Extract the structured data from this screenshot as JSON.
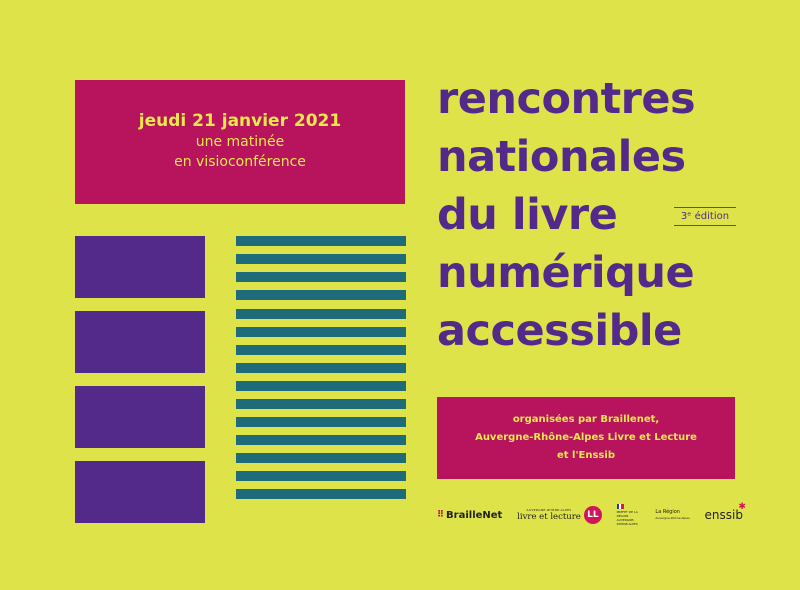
{
  "date_box": {
    "date": "jeudi 21 janvier 2021",
    "line1": "une matinée",
    "line2": "en visioconférence"
  },
  "title": {
    "line1": "rencontres",
    "line2": "nationales",
    "line3": "du livre",
    "line4": "numérique",
    "line5": "accessible"
  },
  "edition": "3ᵉ édition",
  "organizers": {
    "line1": "organisées par Braillenet,",
    "line2": "Auvergne-Rhône-Alpes Livre et Lecture",
    "line3": "et l'Enssib"
  },
  "logos": {
    "braillenet": "BrailleNet",
    "braillenet_mark": "⠿",
    "arald_small": "AUVERGNE-RHÔNE-ALPES",
    "arald_main": "livre et lecture",
    "arald_badge": "LL",
    "prefet": "PRÉFET DE LA RÉGION AUVERGNE-RHÔNE-ALPES",
    "region": "La Région",
    "region_sub": "Auvergne-Rhône-Alpes",
    "enssib": "enssib"
  },
  "colors": {
    "background": "#dfe34a",
    "magenta": "#b8145e",
    "purple": "#532a8a",
    "teal": "#1e6b7a"
  }
}
